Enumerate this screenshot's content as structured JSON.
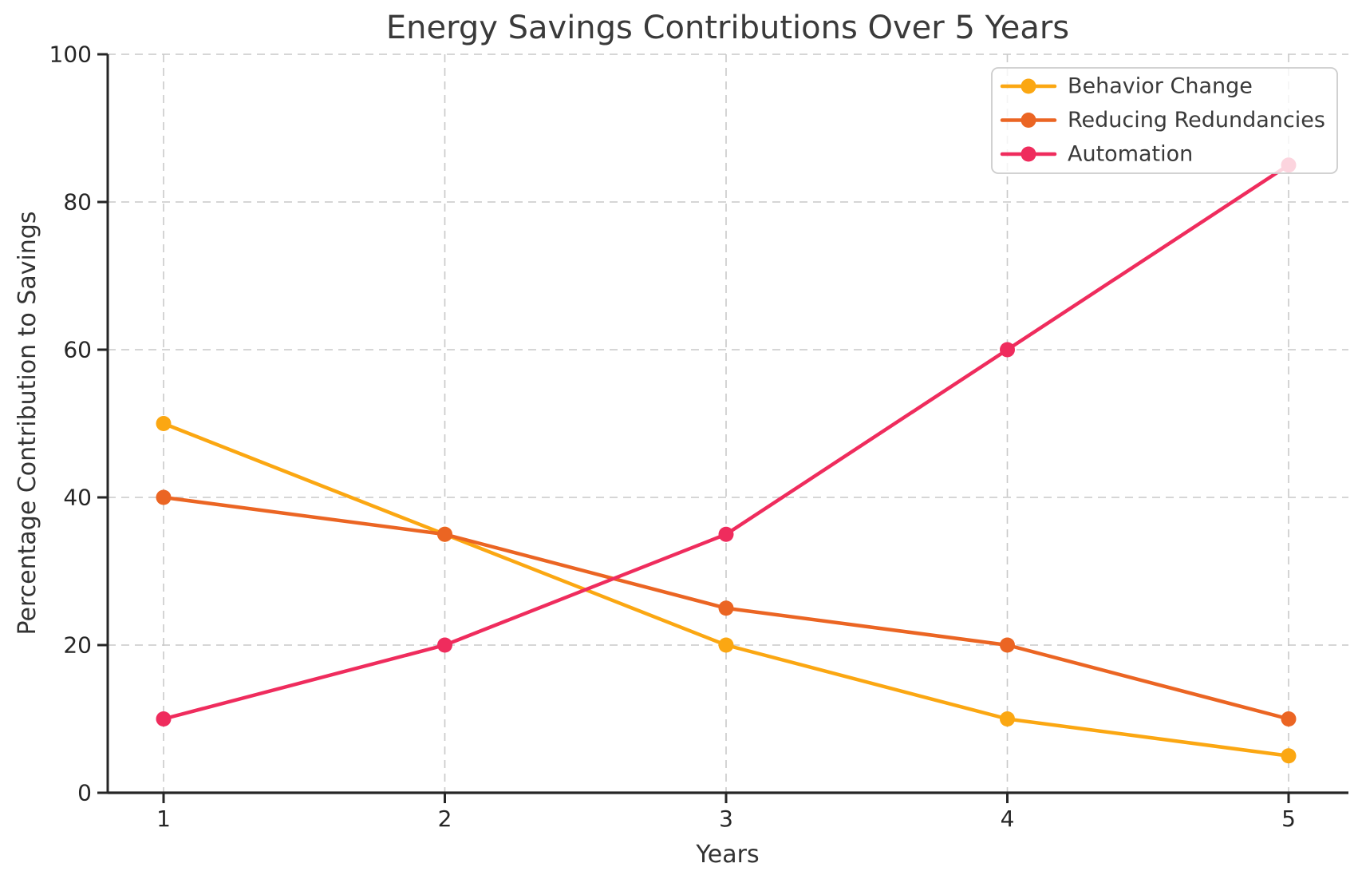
{
  "chart_data": {
    "type": "line",
    "title": "Energy Savings Contributions Over 5 Years",
    "xlabel": "Years",
    "ylabel": "Percentage Contribution to Savings",
    "x": [
      1,
      2,
      3,
      4,
      5
    ],
    "xtick_labels": [
      "1",
      "2",
      "3",
      "4",
      "5"
    ],
    "yticks": [
      0,
      20,
      40,
      60,
      80,
      100
    ],
    "ylim": [
      0,
      100
    ],
    "xlim": [
      0.8,
      5.21
    ],
    "grid": "dashed-both",
    "legend_position": "upper-right",
    "series": [
      {
        "name": "Behavior Change",
        "color": "#FBA712",
        "values": [
          50,
          35,
          20,
          10,
          5
        ]
      },
      {
        "name": "Reducing Redundancies",
        "color": "#EB6523",
        "values": [
          40,
          35,
          25,
          20,
          10
        ]
      },
      {
        "name": "Automation",
        "color": "#EF2C5D",
        "values": [
          10,
          20,
          35,
          60,
          85
        ]
      }
    ],
    "colors": {
      "grid": "#C9C9C9",
      "axis": "#262626",
      "tick_text": "#262626",
      "label_text": "#3A3A3A",
      "legend_border": "#CCCCCC",
      "legend_bg": "rgba(255,255,255,0.8)"
    }
  }
}
